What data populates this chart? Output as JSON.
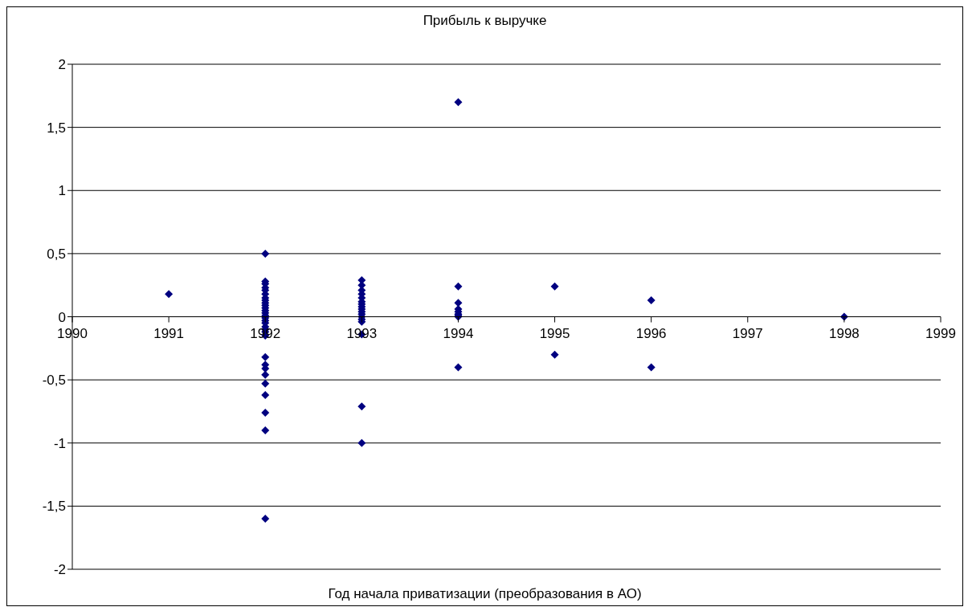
{
  "chart_data": {
    "type": "scatter",
    "title": "Прибыль к выручке",
    "xlabel": "Год начала приватизации (преобразования в АО)",
    "x": [
      1991,
      1992,
      1992,
      1992,
      1992,
      1992,
      1992,
      1992,
      1992,
      1992,
      1992,
      1992,
      1992,
      1992,
      1992,
      1992,
      1992,
      1992,
      1992,
      1992,
      1992,
      1992,
      1992,
      1992,
      1992,
      1992,
      1992,
      1992,
      1992,
      1992,
      1992,
      1993,
      1993,
      1993,
      1993,
      1993,
      1993,
      1993,
      1993,
      1993,
      1993,
      1993,
      1993,
      1993,
      1993,
      1993,
      1993,
      1993,
      1994,
      1994,
      1994,
      1994,
      1994,
      1994,
      1994,
      1994,
      1994,
      1995,
      1995,
      1996,
      1996,
      1998
    ],
    "series": [
      {
        "color": "#000080",
        "values": [
          0.18,
          0.5,
          0.28,
          0.26,
          0.23,
          0.21,
          0.18,
          0.15,
          0.13,
          0.11,
          0.09,
          0.07,
          0.05,
          0.03,
          0.01,
          -0.01,
          -0.03,
          -0.05,
          -0.08,
          -0.1,
          -0.12,
          -0.15,
          -0.32,
          -0.38,
          -0.41,
          -0.46,
          -0.53,
          -0.62,
          -0.76,
          -0.9,
          -1.6,
          0.29,
          0.25,
          0.21,
          0.18,
          0.15,
          0.12,
          0.1,
          0.08,
          0.06,
          0.04,
          0.02,
          0,
          -0.02,
          -0.04,
          -0.14,
          -0.71,
          -1.0,
          1.7,
          0.24,
          0.11,
          0.06,
          0.04,
          0.02,
          0.01,
          0,
          -0.4,
          0.24,
          -0.3,
          0.13,
          -0.4,
          0
        ]
      }
    ],
    "xlim": [
      1990,
      1999
    ],
    "xticks": [
      1990,
      1991,
      1992,
      1993,
      1994,
      1995,
      1996,
      1997,
      1998,
      1999
    ],
    "ylim": [
      -2,
      2
    ],
    "yticks": [
      {
        "value": -2,
        "label": "-2"
      },
      {
        "value": -1.5,
        "label": "-1,5"
      },
      {
        "value": -1,
        "label": "-1"
      },
      {
        "value": -0.5,
        "label": "-0,5"
      },
      {
        "value": 0,
        "label": "0"
      },
      {
        "value": 0.5,
        "label": "0,5"
      },
      {
        "value": 1,
        "label": "1"
      },
      {
        "value": 1.5,
        "label": "1,5"
      },
      {
        "value": 2,
        "label": "2"
      }
    ],
    "grid": "y",
    "marker": "diamond"
  }
}
